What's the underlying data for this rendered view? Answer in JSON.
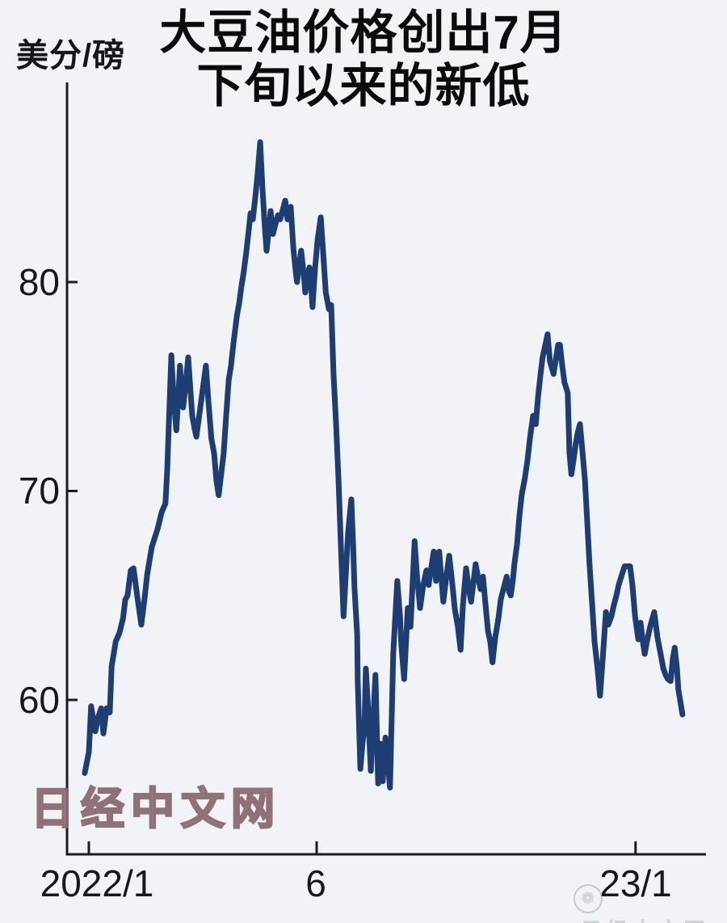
{
  "header": {
    "title_line1": "大豆油价格创出7月",
    "title_line2": "下旬以来的新低",
    "unit_label": "美分/磅"
  },
  "watermark": {
    "main": "日经中文网",
    "corner_text": "日经中文网",
    "corner_logo": "❁"
  },
  "chart_data": {
    "type": "line",
    "title": "大豆油价格创出7月下旬以来的新低",
    "ylabel": "美分/磅",
    "xlabel": "",
    "ylim": [
      52.5,
      90
    ],
    "xlim_months": [
      -0.2,
      13.6
    ],
    "grid": false,
    "legend": "none",
    "x_unit": "months since 2022/1",
    "y_ticks": [
      {
        "label": "80",
        "value": 80
      },
      {
        "label": "70",
        "value": 70
      },
      {
        "label": "60",
        "value": 60
      }
    ],
    "x_ticks": [
      {
        "label": "2022/1",
        "month": 0
      },
      {
        "label": "6",
        "month": 5
      },
      {
        "label": "23/1",
        "month": 12
      }
    ],
    "line_color": "#1e3d72",
    "axis_color": "#1c1c26",
    "background": "#f1f3f7",
    "series": [
      {
        "name": "大豆油价格 (美分/磅)",
        "points": [
          [
            -0.09,
            56.5
          ],
          [
            0.0,
            57.5
          ],
          [
            0.05,
            59.7
          ],
          [
            0.14,
            58.5
          ],
          [
            0.21,
            59.2
          ],
          [
            0.27,
            59.6
          ],
          [
            0.32,
            58.4
          ],
          [
            0.39,
            59.6
          ],
          [
            0.46,
            59.4
          ],
          [
            0.5,
            61.6
          ],
          [
            0.59,
            62.8
          ],
          [
            0.67,
            63.2
          ],
          [
            0.75,
            63.9
          ],
          [
            0.8,
            64.8
          ],
          [
            0.85,
            65.0
          ],
          [
            0.92,
            66.2
          ],
          [
            0.98,
            66.3
          ],
          [
            1.06,
            65.0
          ],
          [
            1.15,
            63.6
          ],
          [
            1.22,
            64.8
          ],
          [
            1.28,
            66.0
          ],
          [
            1.38,
            67.3
          ],
          [
            1.51,
            68.2
          ],
          [
            1.6,
            69.0
          ],
          [
            1.68,
            69.4
          ],
          [
            1.72,
            71.0
          ],
          [
            1.76,
            73.5
          ],
          [
            1.81,
            76.5
          ],
          [
            1.86,
            74.5
          ],
          [
            1.92,
            72.9
          ],
          [
            1.97,
            74.8
          ],
          [
            2.0,
            76.0
          ],
          [
            2.07,
            74.0
          ],
          [
            2.13,
            75.2
          ],
          [
            2.18,
            76.4
          ],
          [
            2.23,
            74.8
          ],
          [
            2.27,
            73.6
          ],
          [
            2.32,
            73.0
          ],
          [
            2.36,
            72.6
          ],
          [
            2.41,
            73.4
          ],
          [
            2.46,
            74.2
          ],
          [
            2.52,
            75.2
          ],
          [
            2.57,
            76.0
          ],
          [
            2.62,
            74.4
          ],
          [
            2.69,
            72.5
          ],
          [
            2.75,
            71.8
          ],
          [
            2.8,
            70.5
          ],
          [
            2.85,
            69.8
          ],
          [
            2.91,
            70.9
          ],
          [
            2.96,
            71.8
          ],
          [
            3.01,
            73.5
          ],
          [
            3.07,
            75.3
          ],
          [
            3.12,
            76.0
          ],
          [
            3.17,
            77.0
          ],
          [
            3.25,
            78.4
          ],
          [
            3.3,
            79.0
          ],
          [
            3.35,
            79.8
          ],
          [
            3.4,
            80.5
          ],
          [
            3.46,
            81.5
          ],
          [
            3.51,
            82.5
          ],
          [
            3.55,
            83.3
          ],
          [
            3.6,
            83.0
          ],
          [
            3.65,
            84.0
          ],
          [
            3.71,
            85.3
          ],
          [
            3.76,
            86.7
          ],
          [
            3.81,
            84.5
          ],
          [
            3.86,
            82.7
          ],
          [
            3.9,
            81.5
          ],
          [
            3.95,
            82.5
          ],
          [
            3.99,
            83.4
          ],
          [
            4.04,
            82.3
          ],
          [
            4.1,
            82.8
          ],
          [
            4.15,
            83.2
          ],
          [
            4.2,
            83.0
          ],
          [
            4.26,
            83.5
          ],
          [
            4.31,
            83.9
          ],
          [
            4.36,
            83.0
          ],
          [
            4.43,
            83.6
          ],
          [
            4.49,
            81.6
          ],
          [
            4.54,
            80.5
          ],
          [
            4.57,
            80.0
          ],
          [
            4.63,
            81.0
          ],
          [
            4.66,
            81.5
          ],
          [
            4.72,
            80.3
          ],
          [
            4.75,
            79.5
          ],
          [
            4.8,
            80.2
          ],
          [
            4.84,
            80.7
          ],
          [
            4.88,
            79.8
          ],
          [
            4.91,
            78.8
          ],
          [
            4.96,
            80.5
          ],
          [
            5.02,
            82.0
          ],
          [
            5.09,
            83.1
          ],
          [
            5.14,
            81.5
          ],
          [
            5.2,
            79.5
          ],
          [
            5.27,
            78.7
          ],
          [
            5.32,
            78.9
          ],
          [
            5.37,
            75.6
          ],
          [
            5.43,
            73.0
          ],
          [
            5.48,
            70.5
          ],
          [
            5.53,
            67.5
          ],
          [
            5.59,
            64.0
          ],
          [
            5.64,
            66.0
          ],
          [
            5.69,
            68.0
          ],
          [
            5.76,
            69.6
          ],
          [
            5.8,
            67.5
          ],
          [
            5.83,
            65.4
          ],
          [
            5.89,
            63.1
          ],
          [
            5.9,
            61.0
          ],
          [
            5.96,
            56.7
          ],
          [
            6.01,
            58.0
          ],
          [
            6.05,
            58.7
          ],
          [
            6.08,
            61.5
          ],
          [
            6.12,
            60.0
          ],
          [
            6.15,
            58.4
          ],
          [
            6.19,
            56.6
          ],
          [
            6.24,
            59.0
          ],
          [
            6.29,
            61.2
          ],
          [
            6.35,
            56.0
          ],
          [
            6.4,
            57.9
          ],
          [
            6.45,
            56.1
          ],
          [
            6.51,
            58.2
          ],
          [
            6.56,
            57.0
          ],
          [
            6.61,
            55.8
          ],
          [
            6.68,
            62.2
          ],
          [
            6.77,
            65.7
          ],
          [
            6.83,
            64.0
          ],
          [
            6.86,
            62.6
          ],
          [
            6.92,
            61.0
          ],
          [
            7.0,
            64.4
          ],
          [
            7.06,
            63.5
          ],
          [
            7.15,
            67.6
          ],
          [
            7.2,
            66.0
          ],
          [
            7.27,
            64.4
          ],
          [
            7.34,
            65.5
          ],
          [
            7.41,
            66.2
          ],
          [
            7.46,
            65.5
          ],
          [
            7.52,
            66.4
          ],
          [
            7.57,
            67.1
          ],
          [
            7.62,
            65.7
          ],
          [
            7.69,
            67.1
          ],
          [
            7.78,
            64.7
          ],
          [
            7.84,
            65.8
          ],
          [
            7.91,
            66.9
          ],
          [
            7.98,
            65.5
          ],
          [
            8.03,
            64.4
          ],
          [
            8.1,
            63.5
          ],
          [
            8.16,
            62.4
          ],
          [
            8.21,
            64.5
          ],
          [
            8.28,
            66.3
          ],
          [
            8.33,
            65.5
          ],
          [
            8.39,
            64.7
          ],
          [
            8.44,
            65.6
          ],
          [
            8.49,
            66.5
          ],
          [
            8.55,
            65.8
          ],
          [
            8.6,
            65.3
          ],
          [
            8.65,
            65.9
          ],
          [
            8.71,
            64.5
          ],
          [
            8.76,
            63.3
          ],
          [
            8.81,
            62.8
          ],
          [
            8.86,
            61.8
          ],
          [
            8.92,
            63.0
          ],
          [
            8.99,
            63.9
          ],
          [
            9.04,
            64.8
          ],
          [
            9.1,
            65.3
          ],
          [
            9.17,
            65.9
          ],
          [
            9.22,
            65.2
          ],
          [
            9.26,
            65.0
          ],
          [
            9.31,
            65.8
          ],
          [
            9.34,
            66.5
          ],
          [
            9.4,
            67.5
          ],
          [
            9.45,
            68.8
          ],
          [
            9.5,
            69.8
          ],
          [
            9.57,
            70.6
          ],
          [
            9.63,
            71.5
          ],
          [
            9.68,
            72.5
          ],
          [
            9.75,
            73.6
          ],
          [
            9.81,
            73.2
          ],
          [
            9.86,
            74.5
          ],
          [
            9.91,
            75.5
          ],
          [
            9.96,
            76.4
          ],
          [
            10.02,
            77.0
          ],
          [
            10.07,
            77.5
          ],
          [
            10.12,
            76.2
          ],
          [
            10.2,
            75.6
          ],
          [
            10.25,
            76.3
          ],
          [
            10.3,
            77.0
          ],
          [
            10.34,
            77.0
          ],
          [
            10.39,
            76.0
          ],
          [
            10.44,
            75.2
          ],
          [
            10.51,
            74.7
          ],
          [
            10.55,
            71.8
          ],
          [
            10.59,
            70.8
          ],
          [
            10.64,
            71.5
          ],
          [
            10.69,
            72.3
          ],
          [
            10.73,
            72.8
          ],
          [
            10.78,
            73.2
          ],
          [
            10.83,
            72.0
          ],
          [
            10.89,
            70.5
          ],
          [
            10.94,
            68.5
          ],
          [
            10.99,
            66.5
          ],
          [
            11.05,
            64.5
          ],
          [
            11.1,
            62.8
          ],
          [
            11.17,
            61.4
          ],
          [
            11.22,
            60.2
          ],
          [
            11.28,
            62.0
          ],
          [
            11.35,
            64.2
          ],
          [
            11.4,
            63.6
          ],
          [
            11.47,
            64.0
          ],
          [
            11.52,
            64.5
          ],
          [
            11.58,
            65.0
          ],
          [
            11.63,
            65.5
          ],
          [
            11.7,
            66.0
          ],
          [
            11.76,
            66.4
          ],
          [
            11.83,
            66.4
          ],
          [
            11.88,
            66.4
          ],
          [
            11.93,
            65.5
          ],
          [
            11.99,
            64.0
          ],
          [
            12.06,
            62.9
          ],
          [
            12.11,
            63.7
          ],
          [
            12.16,
            62.8
          ],
          [
            12.2,
            62.2
          ],
          [
            12.25,
            62.8
          ],
          [
            12.32,
            63.5
          ],
          [
            12.41,
            64.2
          ],
          [
            12.48,
            63.0
          ],
          [
            12.55,
            62.2
          ],
          [
            12.61,
            61.5
          ],
          [
            12.66,
            61.2
          ],
          [
            12.71,
            61.0
          ],
          [
            12.77,
            60.9
          ],
          [
            12.82,
            62.0
          ],
          [
            12.86,
            62.5
          ],
          [
            12.91,
            61.5
          ],
          [
            12.94,
            60.5
          ],
          [
            13.03,
            59.3
          ]
        ]
      }
    ]
  }
}
